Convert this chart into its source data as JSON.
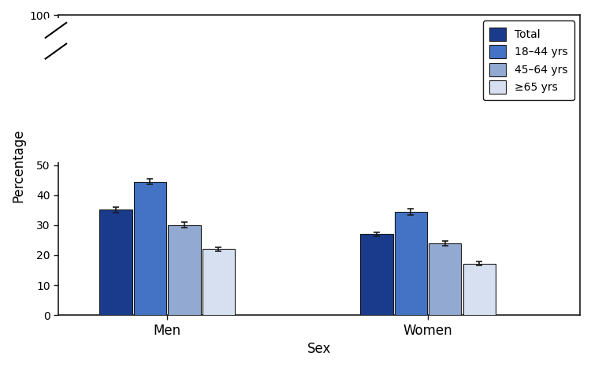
{
  "groups": [
    "Men",
    "Women"
  ],
  "categories": [
    "Total",
    "18–44 yrs",
    "45–64 yrs",
    "≥65 yrs"
  ],
  "values": {
    "Men": [
      35.2,
      44.5,
      30.0,
      22.0
    ],
    "Women": [
      27.0,
      34.5,
      24.0,
      17.2
    ]
  },
  "errors": {
    "Men": [
      0.9,
      0.9,
      0.9,
      0.7
    ],
    "Women": [
      0.6,
      1.0,
      0.8,
      0.7
    ]
  },
  "colors": [
    "#1a3a8c",
    "#4472c4",
    "#92a9d1",
    "#d6e0f0"
  ],
  "bar_edgecolor": "#1a1a1a",
  "error_color": "#1a1a1a",
  "ylabel": "Percentage",
  "xlabel": "Sex",
  "ylim": [
    0,
    100
  ],
  "yticks": [
    0,
    10,
    20,
    30,
    40,
    50,
    100
  ],
  "legend_labels": [
    "Total",
    "18–44 yrs",
    "45–64 yrs",
    "≥65 yrs"
  ],
  "bar_width": 0.15,
  "group_centers": [
    1.0,
    2.2
  ],
  "xlim": [
    0.5,
    2.9
  ],
  "background_color": "#ffffff",
  "axis_linecolor": "#1a1a1a"
}
